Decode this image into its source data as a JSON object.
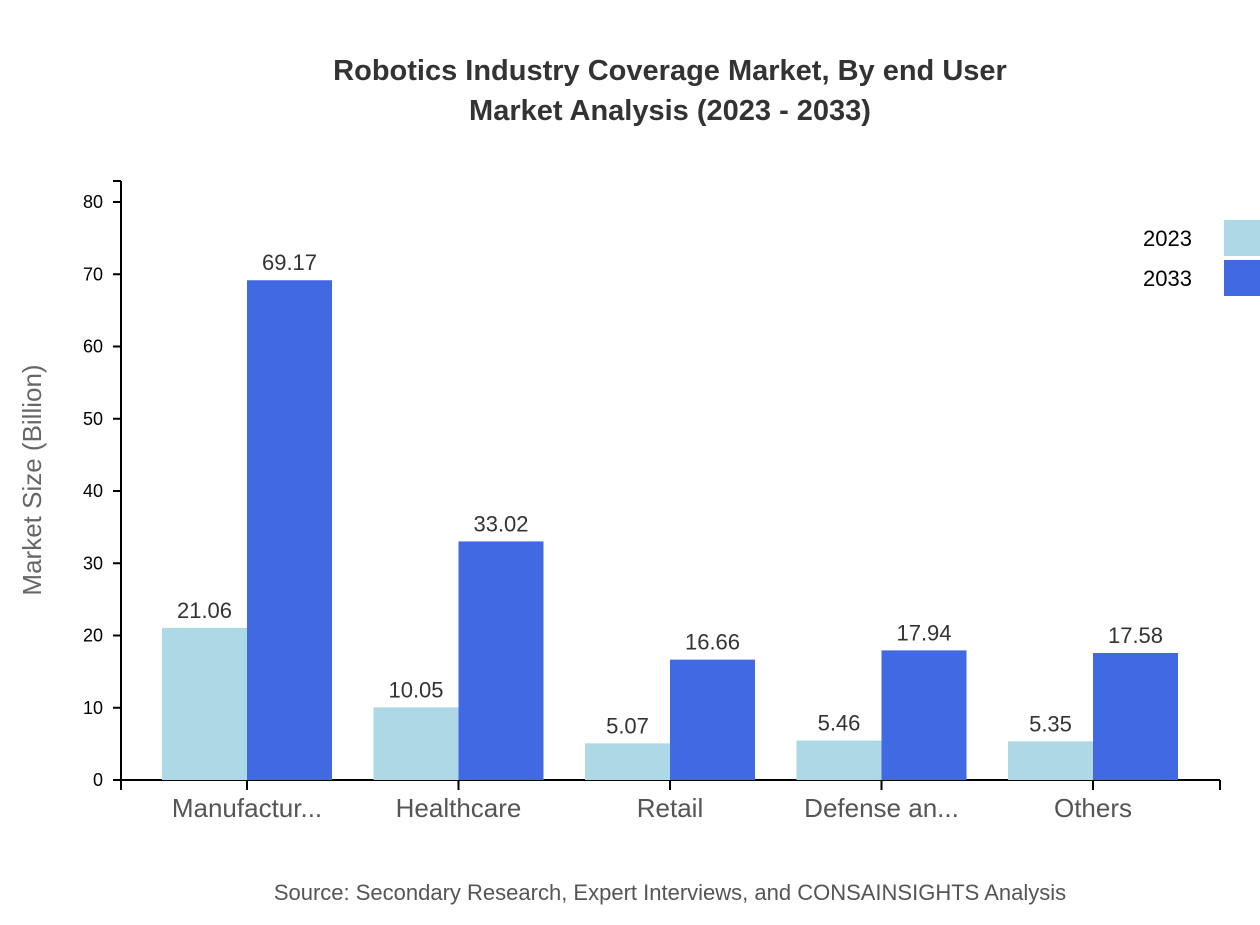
{
  "chart_data": {
    "type": "bar",
    "title": "Robotics Industry Coverage Market, By end User",
    "subtitle": "Market Analysis (2023 - 2033)",
    "xlabel": "",
    "ylabel": "Market Size (Billion)",
    "ylim": [
      0,
      80
    ],
    "yticks": [
      0,
      10,
      20,
      30,
      40,
      50,
      60,
      70,
      80
    ],
    "categories": [
      "Manufactur...",
      "Healthcare",
      "Retail",
      "Defense an...",
      "Others"
    ],
    "series": [
      {
        "name": "2023",
        "color": "#ADD8E6",
        "values": [
          21.06,
          10.05,
          5.07,
          5.46,
          5.35
        ]
      },
      {
        "name": "2033",
        "color": "#4169E1",
        "values": [
          69.17,
          33.02,
          16.66,
          17.94,
          17.58
        ]
      }
    ],
    "grid": false,
    "legend_position": "top-right",
    "source": "Source: Secondary Research, Expert Interviews, and CONSAINSIGHTS Analysis"
  }
}
